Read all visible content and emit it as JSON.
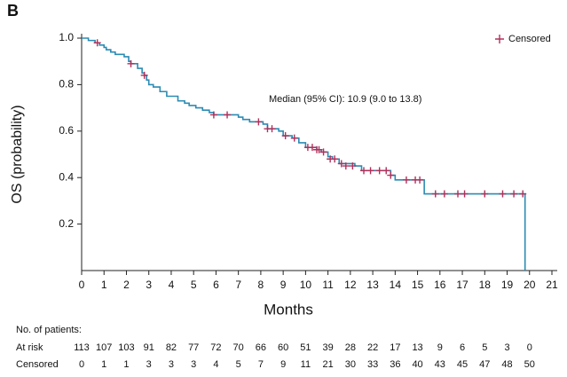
{
  "panel_label": "B",
  "chart_data": {
    "type": "step",
    "x_label": "Months",
    "y_label": "OS (probability)",
    "annotation": "Median (95% CI): 10.9 (9.0 to 13.8)",
    "xlim": [
      0,
      21
    ],
    "xticks": [
      0,
      1,
      2,
      3,
      4,
      5,
      6,
      7,
      8,
      9,
      10,
      11,
      12,
      13,
      14,
      15,
      16,
      17,
      18,
      19,
      20,
      21
    ],
    "ylim": [
      0,
      1
    ],
    "yticks": [
      0.2,
      0.4,
      0.6,
      0.8,
      {
        "value": 1,
        "label": "1.0"
      }
    ],
    "color": "#2b8bb3",
    "x": [
      0,
      0.3,
      0.6,
      0.8,
      1.0,
      1.1,
      1.3,
      1.5,
      1.9,
      2.1,
      2.2,
      2.5,
      2.7,
      2.8,
      2.9,
      3.0,
      3.2,
      3.5,
      3.8,
      4.3,
      4.6,
      4.8,
      5.1,
      5.4,
      5.7,
      5.9,
      7.0,
      7.2,
      7.5,
      8.1,
      8.3,
      8.8,
      9.0,
      9.4,
      9.7,
      10.0,
      10.5,
      10.7,
      11.0,
      11.2,
      11.5,
      12.2,
      12.5,
      13.8,
      14.0,
      15.3,
      19.8
    ],
    "y": [
      1.0,
      0.99,
      0.98,
      0.97,
      0.96,
      0.95,
      0.94,
      0.93,
      0.92,
      0.9,
      0.89,
      0.87,
      0.85,
      0.84,
      0.82,
      0.8,
      0.79,
      0.77,
      0.75,
      0.73,
      0.72,
      0.71,
      0.7,
      0.69,
      0.68,
      0.67,
      0.66,
      0.65,
      0.64,
      0.63,
      0.61,
      0.6,
      0.58,
      0.57,
      0.55,
      0.53,
      0.52,
      0.51,
      0.49,
      0.48,
      0.46,
      0.45,
      0.43,
      0.41,
      0.39,
      0.33,
      0.0
    ],
    "censored": {
      "name": "Censored",
      "color": "#b0305a",
      "x": [
        0.7,
        2.2,
        2.8,
        5.9,
        6.5,
        7.9,
        8.3,
        8.5,
        9.1,
        9.5,
        10.1,
        10.3,
        10.5,
        10.6,
        10.8,
        11.1,
        11.3,
        11.6,
        11.8,
        12.1,
        12.6,
        12.9,
        13.3,
        13.6,
        13.8,
        14.5,
        14.9,
        15.1,
        15.8,
        16.2,
        16.8,
        17.1,
        18.0,
        18.8,
        19.3,
        19.7
      ],
      "y": [
        0.98,
        0.89,
        0.84,
        0.67,
        0.67,
        0.64,
        0.61,
        0.61,
        0.58,
        0.57,
        0.53,
        0.53,
        0.52,
        0.52,
        0.51,
        0.48,
        0.48,
        0.46,
        0.45,
        0.45,
        0.43,
        0.43,
        0.43,
        0.43,
        0.41,
        0.39,
        0.39,
        0.39,
        0.33,
        0.33,
        0.33,
        0.33,
        0.33,
        0.33,
        0.33,
        0.33
      ]
    },
    "legend_position": "upper right",
    "risk_table": {
      "title": "No. of patients:",
      "rows": [
        {
          "label": "At risk",
          "values": [
            113,
            107,
            103,
            91,
            82,
            77,
            72,
            70,
            66,
            60,
            51,
            39,
            28,
            22,
            17,
            13,
            9,
            6,
            5,
            3,
            0
          ]
        },
        {
          "label": "Censored",
          "values": [
            0,
            1,
            1,
            3,
            3,
            3,
            4,
            5,
            7,
            9,
            11,
            21,
            30,
            33,
            36,
            40,
            43,
            45,
            47,
            48,
            50
          ]
        }
      ]
    }
  }
}
